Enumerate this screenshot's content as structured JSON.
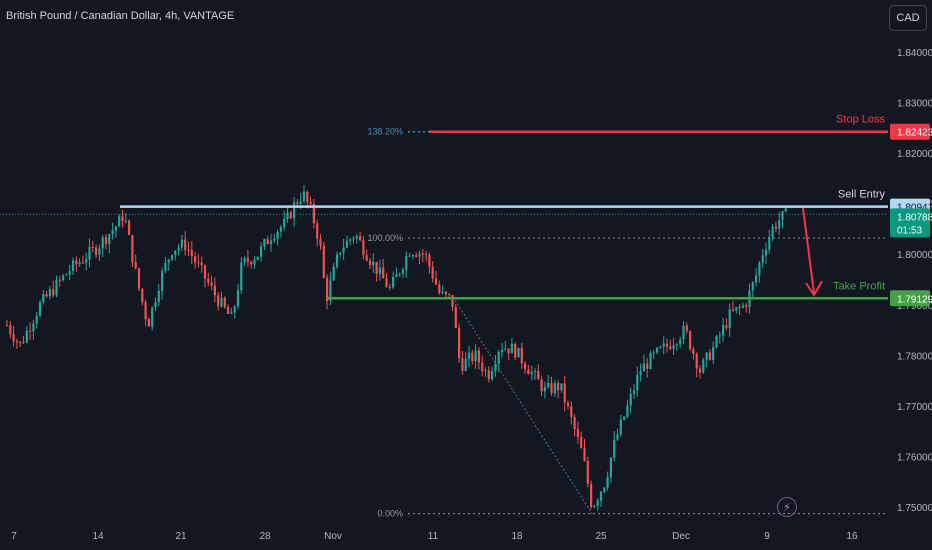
{
  "header": {
    "title": "British Pound / Canadian Dollar, 4h, VANTAGE"
  },
  "currency_button": {
    "label": "CAD"
  },
  "annotations": {
    "stop_loss": "Stop Loss",
    "sell_entry": "Sell Entry",
    "take_profit": "Take Profit",
    "fib_top": "138.20%",
    "fib_mid": "100.00%",
    "fib_bottom": "0.00%"
  },
  "price_labels": {
    "stop_loss": "1.82423",
    "sell_entry": "1.80941",
    "current": "1.80788",
    "countdown": "01:53",
    "take_profit": "1.79129"
  },
  "colors": {
    "background": "#131722",
    "up": "#26a69a",
    "down": "#ef5350",
    "stop_loss": "#f23645",
    "sell_entry": "#b2d8f5",
    "take_profit": "#43a047",
    "current": "#089981",
    "arrow": "#f23645",
    "axis_text": "#b2b5be",
    "fib": "#4a6f86"
  },
  "chart_data": {
    "type": "candlestick",
    "title": "British Pound / Canadian Dollar, 4h, VANTAGE",
    "y_ticks": [
      1.84,
      1.83,
      1.82,
      1.81,
      1.8,
      1.79,
      1.78,
      1.77,
      1.76,
      1.75
    ],
    "y_tick_labels": [
      "1.84000",
      "1.83000",
      "1.82000",
      "1.81000",
      "1.80000",
      "1.79000",
      "1.78000",
      "1.77000",
      "1.76000",
      "1.75000"
    ],
    "ylim": [
      1.7475,
      1.8475
    ],
    "x_tick_labels": [
      "7",
      "14",
      "21",
      "28",
      "Nov",
      "11",
      "18",
      "25",
      "Dec",
      "9",
      "16"
    ],
    "levels": [
      {
        "name": "Stop Loss",
        "value": 1.82423
      },
      {
        "name": "Sell Entry",
        "value": 1.80941
      },
      {
        "name": "Take Profit",
        "value": 1.79129
      }
    ],
    "current_price": 1.80788,
    "fibonacci": [
      {
        "label": "138.20%",
        "value": 1.82423
      },
      {
        "label": "100.00%",
        "value": 1.8032
      },
      {
        "label": "0.00%",
        "value": 1.7487
      }
    ],
    "price_path": [
      [
        7,
        1.786
      ],
      [
        20,
        1.782
      ],
      [
        40,
        1.79
      ],
      [
        70,
        1.797
      ],
      [
        95,
        1.801
      ],
      [
        118,
        1.806
      ],
      [
        124,
        1.808
      ],
      [
        131,
        1.801
      ],
      [
        138,
        1.794
      ],
      [
        148,
        1.786
      ],
      [
        160,
        1.795
      ],
      [
        172,
        1.801
      ],
      [
        185,
        1.802
      ],
      [
        200,
        1.797
      ],
      [
        218,
        1.791
      ],
      [
        232,
        1.787
      ],
      [
        242,
        1.798
      ],
      [
        258,
        1.8
      ],
      [
        272,
        1.804
      ],
      [
        285,
        1.806
      ],
      [
        295,
        1.81
      ],
      [
        303,
        1.812
      ],
      [
        312,
        1.808
      ],
      [
        320,
        1.802
      ],
      [
        326,
        1.791
      ],
      [
        340,
        1.801
      ],
      [
        355,
        1.804
      ],
      [
        370,
        1.799
      ],
      [
        390,
        1.793
      ],
      [
        410,
        1.801
      ],
      [
        425,
        1.8
      ],
      [
        440,
        1.792
      ],
      [
        452,
        1.791
      ],
      [
        460,
        1.778
      ],
      [
        475,
        1.78
      ],
      [
        488,
        1.776
      ],
      [
        500,
        1.782
      ],
      [
        515,
        1.781
      ],
      [
        530,
        1.777
      ],
      [
        545,
        1.773
      ],
      [
        560,
        1.774
      ],
      [
        575,
        1.765
      ],
      [
        583,
        1.76
      ],
      [
        592,
        1.75
      ],
      [
        605,
        1.755
      ],
      [
        615,
        1.763
      ],
      [
        628,
        1.77
      ],
      [
        640,
        1.777
      ],
      [
        655,
        1.78
      ],
      [
        668,
        1.782
      ],
      [
        685,
        1.785
      ],
      [
        700,
        1.777
      ],
      [
        715,
        1.782
      ],
      [
        730,
        1.788
      ],
      [
        745,
        1.79
      ],
      [
        755,
        1.795
      ],
      [
        762,
        1.8
      ],
      [
        772,
        1.805
      ],
      [
        780,
        1.807
      ],
      [
        788,
        1.808
      ]
    ]
  }
}
